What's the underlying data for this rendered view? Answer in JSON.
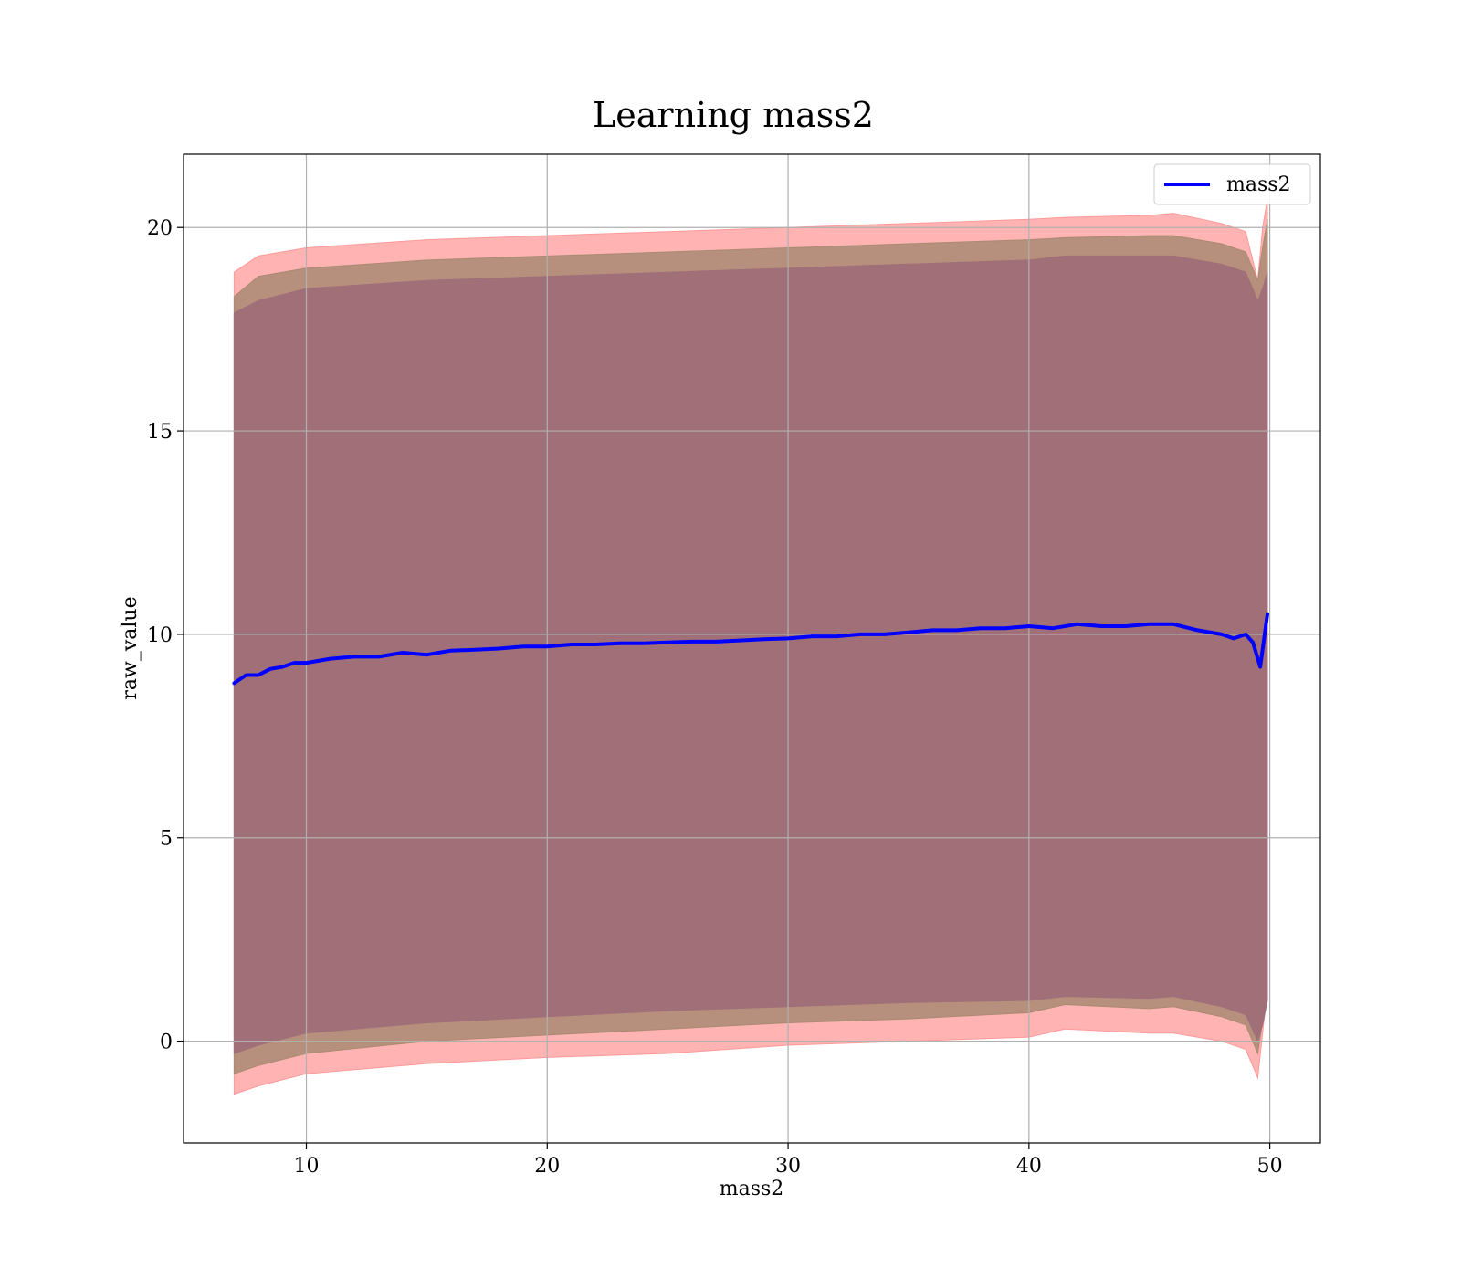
{
  "chart_data": {
    "type": "line",
    "title": "Learning mass2",
    "xlabel": "mass2",
    "ylabel": "raw_value",
    "xlim": [
      4.9,
      52.1
    ],
    "ylim": [
      -2.5,
      21.8
    ],
    "xticks": [
      10,
      20,
      30,
      40,
      50
    ],
    "yticks": [
      0,
      5,
      10,
      15,
      20
    ],
    "grid": true,
    "legend": {
      "position": "top-right",
      "entries": [
        "mass2"
      ]
    },
    "colors": {
      "line": "#0000ff",
      "outer_band": "#ff9999",
      "middle_band": "#a98a72",
      "inner_band": "#a06f78",
      "grid": "#b0b0b0"
    },
    "series": [
      {
        "name": "mass2",
        "x": [
          7,
          7.5,
          8,
          8.5,
          9,
          9.5,
          10,
          11,
          12,
          13,
          14,
          15,
          16,
          17,
          18,
          19,
          20,
          21,
          22,
          23,
          24,
          25,
          26,
          27,
          28,
          29,
          30,
          31,
          32,
          33,
          34,
          35,
          36,
          37,
          38,
          39,
          40,
          41,
          42,
          43,
          44,
          45,
          46,
          47,
          48,
          48.5,
          49,
          49.3,
          49.6,
          49.9
        ],
        "y": [
          8.8,
          9.0,
          9.0,
          9.15,
          9.2,
          9.3,
          9.3,
          9.4,
          9.45,
          9.45,
          9.55,
          9.5,
          9.6,
          9.62,
          9.65,
          9.7,
          9.7,
          9.75,
          9.75,
          9.78,
          9.78,
          9.8,
          9.82,
          9.82,
          9.85,
          9.88,
          9.9,
          9.95,
          9.95,
          10.0,
          10.0,
          10.05,
          10.1,
          10.1,
          10.15,
          10.15,
          10.2,
          10.15,
          10.25,
          10.2,
          10.2,
          10.25,
          10.25,
          10.1,
          10.0,
          9.9,
          10.0,
          9.8,
          9.2,
          10.5
        ]
      }
    ],
    "bands": [
      {
        "level": "outer",
        "x": [
          7,
          8,
          10,
          15,
          20,
          25,
          30,
          35,
          40,
          41.5,
          45,
          46,
          48,
          49,
          49.5,
          49.7,
          49.9
        ],
        "lower": [
          -1.3,
          -1.1,
          -0.8,
          -0.55,
          -0.4,
          -0.3,
          -0.1,
          0.0,
          0.1,
          0.3,
          0.2,
          0.2,
          0.0,
          -0.2,
          -0.9,
          0.2,
          1.3
        ],
        "upper": [
          18.9,
          19.3,
          19.5,
          19.7,
          19.8,
          19.9,
          20.0,
          20.1,
          20.2,
          20.25,
          20.3,
          20.35,
          20.1,
          19.9,
          18.7,
          20.0,
          20.7
        ]
      },
      {
        "level": "middle",
        "x": [
          7,
          8,
          10,
          15,
          20,
          25,
          30,
          35,
          40,
          41.5,
          45,
          46,
          48,
          49,
          49.5,
          49.7,
          49.9
        ],
        "lower": [
          -0.8,
          -0.6,
          -0.3,
          0.0,
          0.15,
          0.3,
          0.45,
          0.55,
          0.7,
          0.9,
          0.8,
          0.85,
          0.6,
          0.4,
          -0.3,
          0.5,
          1.3
        ],
        "upper": [
          18.3,
          18.8,
          19.0,
          19.2,
          19.3,
          19.4,
          19.5,
          19.6,
          19.7,
          19.75,
          19.8,
          19.8,
          19.6,
          19.4,
          18.7,
          19.5,
          20.2
        ]
      },
      {
        "level": "inner",
        "x": [
          7,
          8,
          10,
          15,
          20,
          25,
          30,
          35,
          40,
          41.5,
          45,
          46,
          48,
          49,
          49.5,
          49.7,
          49.9
        ],
        "lower": [
          -0.3,
          -0.1,
          0.2,
          0.45,
          0.6,
          0.75,
          0.85,
          0.95,
          1.0,
          1.1,
          1.05,
          1.1,
          0.85,
          0.65,
          0.0,
          0.4,
          1.0
        ],
        "upper": [
          17.9,
          18.2,
          18.5,
          18.7,
          18.8,
          18.9,
          19.0,
          19.1,
          19.2,
          19.3,
          19.3,
          19.3,
          19.1,
          18.9,
          18.2,
          18.5,
          18.9
        ]
      }
    ]
  }
}
